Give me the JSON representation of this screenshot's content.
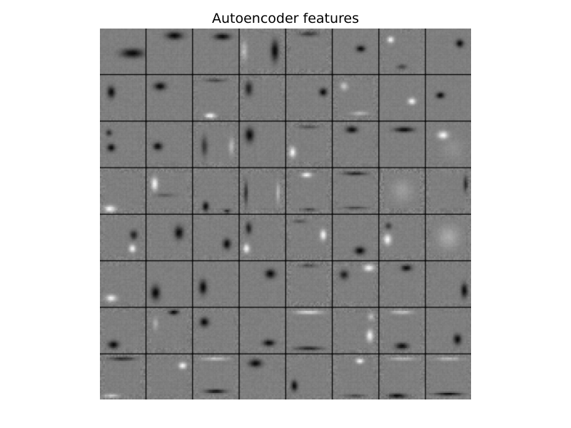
{
  "figure": {
    "title": "Autoencoder features",
    "grid": {
      "rows": 8,
      "cols": 8
    },
    "colormap": "gray",
    "background_tone": "#808080",
    "separator_color": "#000000",
    "tiles": [
      {
        "p": [
          [
            0.72,
            0.55,
            0.35,
            0.14,
            -1
          ]
        ],
        "e": []
      },
      {
        "p": [
          [
            0.62,
            0.16,
            0.26,
            0.12,
            -1
          ]
        ],
        "e": []
      },
      {
        "p": [
          [
            0.65,
            0.18,
            0.25,
            0.1,
            -1
          ]
        ],
        "e": []
      },
      {
        "p": [
          [
            0.78,
            0.5,
            0.12,
            0.32,
            -1
          ],
          [
            0.1,
            0.5,
            0.1,
            0.3,
            0.5
          ]
        ],
        "e": [
          0.35
        ]
      },
      {
        "p": [
          [
            0.5,
            0.12,
            0.3,
            0.08,
            -0.6
          ]
        ],
        "e": [
          0.45
        ]
      },
      {
        "p": [
          [
            0.62,
            0.45,
            0.14,
            0.1,
            -1
          ]
        ],
        "e": []
      },
      {
        "p": [
          [
            0.25,
            0.25,
            0.1,
            0.1,
            1
          ],
          [
            0.5,
            0.85,
            0.15,
            0.08,
            -0.5
          ]
        ],
        "e": [
          0.3
        ]
      },
      {
        "p": [
          [
            0.75,
            0.33,
            0.12,
            0.12,
            -1
          ]
        ],
        "e": []
      },
      {
        "p": [
          [
            0.25,
            0.38,
            0.12,
            0.18,
            -1
          ]
        ],
        "e": [
          0.2
        ]
      },
      {
        "p": [
          [
            0.3,
            0.25,
            0.18,
            0.12,
            -1
          ]
        ],
        "e": []
      },
      {
        "p": [
          [
            0.38,
            0.9,
            0.16,
            0.08,
            1
          ],
          [
            0.5,
            0.12,
            0.3,
            0.06,
            -0.5
          ]
        ],
        "e": [
          0.35
        ]
      },
      {
        "p": [
          [
            0.2,
            0.3,
            0.12,
            0.22,
            -0.8
          ]
        ],
        "e": [
          0.4
        ]
      },
      {
        "p": [
          [
            0.82,
            0.38,
            0.12,
            0.12,
            -1
          ]
        ],
        "e": [
          0.25
        ]
      },
      {
        "p": [
          [
            0.25,
            0.25,
            0.12,
            0.12,
            0.6
          ],
          [
            0.6,
            0.85,
            0.25,
            0.06,
            0.5
          ]
        ],
        "e": [
          0.4
        ]
      },
      {
        "p": [
          [
            0.72,
            0.58,
            0.12,
            0.1,
            1
          ]
        ],
        "e": []
      },
      {
        "p": [
          [
            0.32,
            0.45,
            0.13,
            0.1,
            -1
          ]
        ],
        "e": []
      },
      {
        "p": [
          [
            0.2,
            0.25,
            0.1,
            0.1,
            -0.7
          ],
          [
            0.25,
            0.58,
            0.12,
            0.12,
            -1
          ]
        ],
        "e": [
          0.2
        ]
      },
      {
        "p": [
          [
            0.25,
            0.55,
            0.14,
            0.12,
            -1
          ]
        ],
        "e": [
          0.25
        ]
      },
      {
        "p": [
          [
            0.25,
            0.55,
            0.1,
            0.3,
            -0.6
          ],
          [
            0.85,
            0.55,
            0.08,
            0.25,
            0.5
          ]
        ],
        "e": [
          0.4
        ]
      },
      {
        "p": [
          [
            0.22,
            0.3,
            0.14,
            0.22,
            -1
          ]
        ],
        "e": []
      },
      {
        "p": [
          [
            0.14,
            0.68,
            0.1,
            0.16,
            1
          ],
          [
            0.5,
            0.12,
            0.3,
            0.06,
            -0.4
          ]
        ],
        "e": [
          0.4
        ]
      },
      {
        "p": [
          [
            0.42,
            0.18,
            0.18,
            0.1,
            -1
          ]
        ],
        "e": [
          0.3
        ]
      },
      {
        "p": [
          [
            0.55,
            0.18,
            0.3,
            0.08,
            -1
          ]
        ],
        "e": []
      },
      {
        "p": [
          [
            0.38,
            0.3,
            0.16,
            0.12,
            1
          ],
          [
            0.6,
            0.6,
            0.3,
            0.3,
            0.15
          ]
        ],
        "e": [
          0.2
        ]
      },
      {
        "p": [
          [
            0.22,
            0.9,
            0.18,
            0.1,
            1
          ]
        ],
        "e": [
          0.45
        ]
      },
      {
        "p": [
          [
            0.18,
            0.35,
            0.1,
            0.2,
            1
          ],
          [
            0.4,
            0.6,
            0.3,
            0.06,
            -0.3
          ]
        ],
        "e": [
          0.4
        ]
      },
      {
        "p": [
          [
            0.28,
            0.85,
            0.1,
            0.14,
            -1
          ],
          [
            0.75,
            0.95,
            0.1,
            0.06,
            -0.8
          ]
        ],
        "e": [
          0.35
        ]
      },
      {
        "p": [
          [
            0.14,
            0.55,
            0.06,
            0.35,
            -0.7
          ],
          [
            0.85,
            0.55,
            0.06,
            0.3,
            0.5
          ]
        ],
        "e": [
          0.45
        ]
      },
      {
        "p": [
          [
            0.45,
            0.15,
            0.15,
            0.08,
            1
          ],
          [
            0.5,
            0.92,
            0.25,
            0.05,
            -0.5
          ]
        ],
        "e": [
          0.45
        ]
      },
      {
        "p": [
          [
            0.5,
            0.12,
            0.35,
            0.06,
            -0.8
          ],
          [
            0.5,
            0.88,
            0.35,
            0.05,
            -0.5
          ]
        ],
        "e": [
          0.3
        ]
      },
      {
        "p": [
          [
            0.5,
            0.5,
            0.32,
            0.32,
            0.25
          ]
        ],
        "e": [
          0.6
        ]
      },
      {
        "p": [
          [
            0.88,
            0.35,
            0.07,
            0.25,
            -0.7
          ]
        ],
        "e": [
          0.45
        ]
      },
      {
        "p": [
          [
            0.75,
            0.45,
            0.12,
            0.14,
            -0.8
          ],
          [
            0.72,
            0.75,
            0.1,
            0.12,
            1
          ]
        ],
        "e": [
          0.35
        ]
      },
      {
        "p": [
          [
            0.72,
            0.4,
            0.14,
            0.2,
            -1
          ]
        ],
        "e": [
          0.25
        ]
      },
      {
        "p": [
          [
            0.75,
            0.65,
            0.12,
            0.16,
            -1
          ]
        ],
        "e": [
          0.25
        ]
      },
      {
        "p": [
          [
            0.2,
            0.3,
            0.1,
            0.18,
            -0.8
          ],
          [
            0.15,
            0.75,
            0.1,
            0.14,
            1
          ]
        ],
        "e": [
          0.35
        ]
      },
      {
        "p": [
          [
            0.82,
            0.45,
            0.1,
            0.16,
            1
          ],
          [
            0.3,
            0.15,
            0.2,
            0.06,
            -0.4
          ]
        ],
        "e": [
          0.4
        ]
      },
      {
        "p": [
          [
            0.6,
            0.8,
            0.16,
            0.12,
            -1
          ]
        ],
        "e": [
          0.2
        ]
      },
      {
        "p": [
          [
            0.18,
            0.55,
            0.12,
            0.16,
            1
          ],
          [
            0.2,
            0.25,
            0.1,
            0.1,
            -0.6
          ]
        ],
        "e": [
          0.35
        ]
      },
      {
        "p": [
          [
            0.5,
            0.5,
            0.35,
            0.35,
            0.35
          ]
        ],
        "e": [
          0.35
        ]
      },
      {
        "p": [
          [
            0.25,
            0.82,
            0.16,
            0.1,
            1
          ]
        ],
        "e": [
          0.35
        ]
      },
      {
        "p": [
          [
            0.2,
            0.7,
            0.14,
            0.22,
            -1
          ]
        ],
        "e": []
      },
      {
        "p": [
          [
            0.22,
            0.58,
            0.12,
            0.22,
            -1
          ]
        ],
        "e": [
          0.2
        ]
      },
      {
        "p": [
          [
            0.68,
            0.28,
            0.16,
            0.14,
            -1
          ]
        ],
        "e": []
      },
      {
        "p": [
          [
            0.5,
            0.1,
            0.3,
            0.06,
            -0.4
          ]
        ],
        "e": [
          0.5
        ]
      },
      {
        "p": [
          [
            0.8,
            0.15,
            0.16,
            0.1,
            1
          ],
          [
            0.25,
            0.3,
            0.14,
            0.14,
            -0.8
          ]
        ],
        "e": [
          0.35
        ]
      },
      {
        "p": [
          [
            0.6,
            0.15,
            0.16,
            0.1,
            -1
          ]
        ],
        "e": [
          0.3
        ]
      },
      {
        "p": [
          [
            0.85,
            0.65,
            0.1,
            0.22,
            -1
          ]
        ],
        "e": [
          0.3
        ]
      },
      {
        "p": [
          [
            0.3,
            0.82,
            0.16,
            0.12,
            -1
          ]
        ],
        "e": [
          0.35
        ]
      },
      {
        "p": [
          [
            0.6,
            0.1,
            0.15,
            0.08,
            -1
          ],
          [
            0.2,
            0.35,
            0.08,
            0.18,
            0.4
          ]
        ],
        "e": [
          0.4
        ]
      },
      {
        "p": [
          [
            0.25,
            0.32,
            0.14,
            0.14,
            -1
          ]
        ],
        "e": [
          0.3
        ]
      },
      {
        "p": [
          [
            0.65,
            0.78,
            0.18,
            0.1,
            -1
          ]
        ],
        "e": [
          0.25
        ]
      },
      {
        "p": [
          [
            0.5,
            0.1,
            0.4,
            0.06,
            0.8
          ],
          [
            0.5,
            0.9,
            0.4,
            0.06,
            -0.8
          ]
        ],
        "e": [
          0.25
        ]
      },
      {
        "p": [
          [
            0.82,
            0.62,
            0.1,
            0.18,
            1
          ],
          [
            0.85,
            0.2,
            0.1,
            0.12,
            0.5
          ]
        ],
        "e": [
          0.4
        ]
      },
      {
        "p": [
          [
            0.5,
            0.1,
            0.35,
            0.06,
            0.6
          ],
          [
            0.5,
            0.85,
            0.2,
            0.1,
            -1
          ]
        ],
        "e": [
          0.3
        ]
      },
      {
        "p": [
          [
            0.7,
            0.7,
            0.12,
            0.16,
            -1
          ]
        ],
        "e": [
          0.25
        ]
      },
      {
        "p": [
          [
            0.5,
            0.1,
            0.4,
            0.06,
            -0.7
          ],
          [
            0.25,
            0.92,
            0.25,
            0.06,
            0.6
          ]
        ],
        "e": [
          0.45
        ]
      },
      {
        "p": [
          [
            0.8,
            0.25,
            0.12,
            0.1,
            1
          ]
        ],
        "e": [
          0.35
        ]
      },
      {
        "p": [
          [
            0.5,
            0.1,
            0.4,
            0.05,
            0.6
          ],
          [
            0.5,
            0.82,
            0.3,
            0.06,
            -1
          ]
        ],
        "e": [
          0.35
        ]
      },
      {
        "p": [
          [
            0.35,
            0.2,
            0.2,
            0.12,
            -1
          ]
        ],
        "e": [
          0.2
        ]
      },
      {
        "p": [
          [
            0.18,
            0.7,
            0.1,
            0.16,
            -1
          ]
        ],
        "e": [
          0.35
        ]
      },
      {
        "p": [
          [
            0.6,
            0.15,
            0.12,
            0.08,
            1
          ],
          [
            0.5,
            0.92,
            0.3,
            0.05,
            -0.5
          ]
        ],
        "e": [
          0.4
        ]
      },
      {
        "p": [
          [
            0.4,
            0.92,
            0.28,
            0.07,
            -1
          ],
          [
            0.5,
            0.1,
            0.4,
            0.05,
            0.5
          ]
        ],
        "e": [
          0.4
        ]
      },
      {
        "p": [
          [
            0.5,
            0.88,
            0.4,
            0.05,
            -1
          ],
          [
            0.5,
            0.1,
            0.4,
            0.05,
            0.5
          ]
        ],
        "e": [
          0.3
        ]
      }
    ]
  }
}
